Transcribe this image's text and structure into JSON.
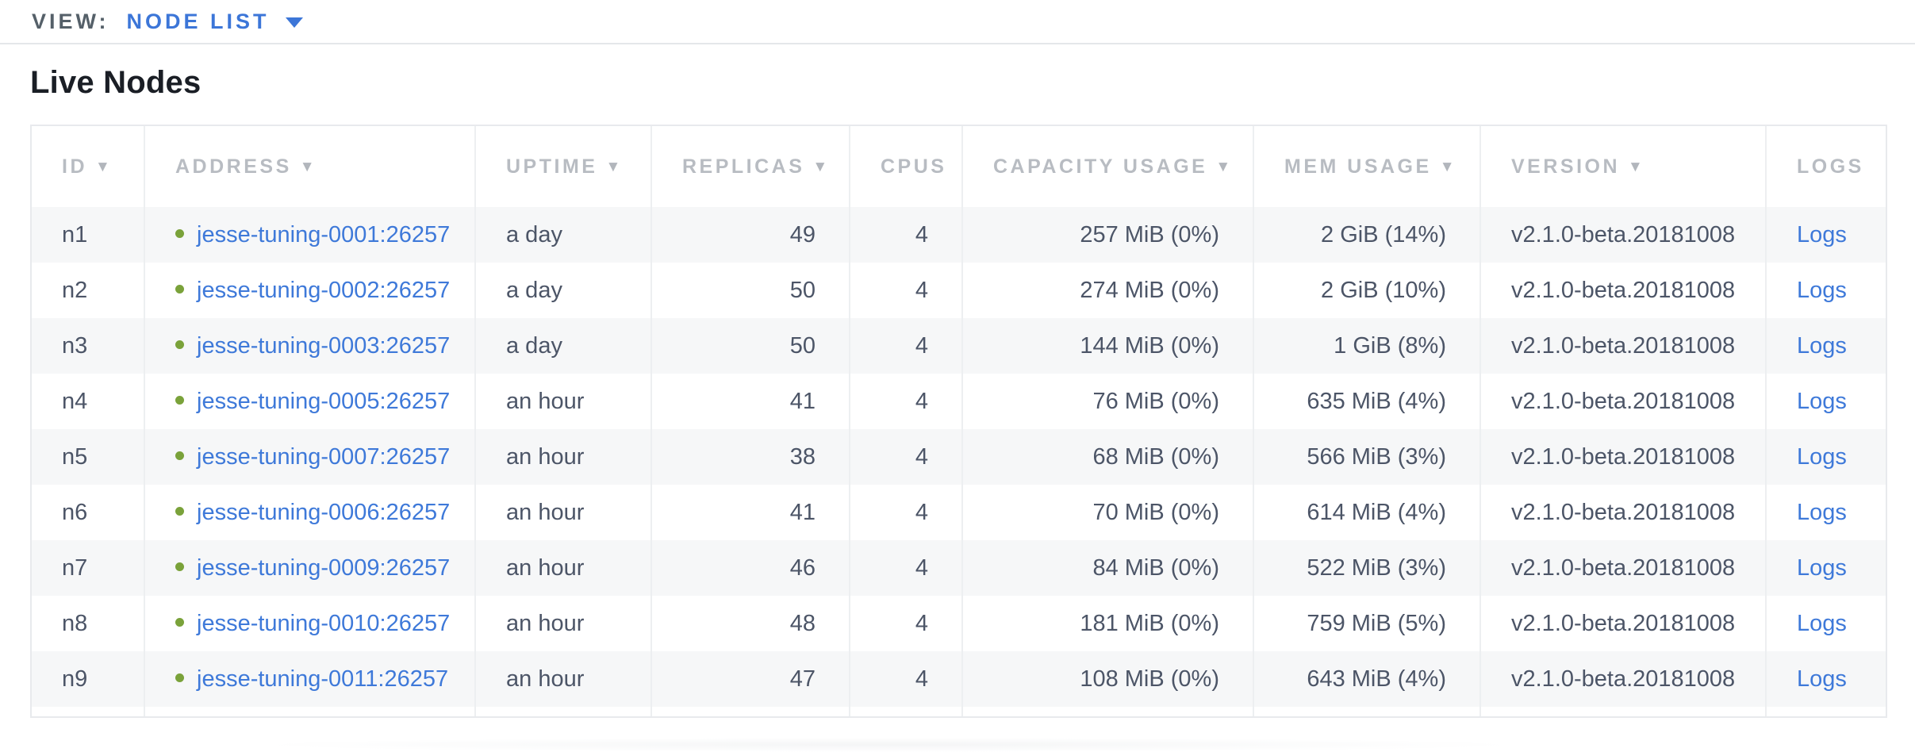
{
  "view_bar": {
    "label": "VIEW:",
    "selected": "NODE LIST"
  },
  "page": {
    "title": "Live Nodes"
  },
  "table": {
    "columns": [
      {
        "key": "id",
        "label": "ID",
        "sortable": true,
        "align": "left"
      },
      {
        "key": "address",
        "label": "ADDRESS",
        "sortable": true,
        "align": "left"
      },
      {
        "key": "uptime",
        "label": "UPTIME",
        "sortable": true,
        "align": "left"
      },
      {
        "key": "replicas",
        "label": "REPLICAS",
        "sortable": true,
        "align": "right"
      },
      {
        "key": "cpus",
        "label": "CPUS",
        "sortable": false,
        "align": "right"
      },
      {
        "key": "capacity",
        "label": "CAPACITY USAGE",
        "sortable": true,
        "align": "right"
      },
      {
        "key": "mem",
        "label": "MEM USAGE",
        "sortable": true,
        "align": "right"
      },
      {
        "key": "version",
        "label": "VERSION",
        "sortable": true,
        "align": "left"
      },
      {
        "key": "logs",
        "label": "LOGS",
        "sortable": false,
        "align": "left"
      }
    ],
    "rows": [
      {
        "id": "n1",
        "address": "jesse-tuning-0001:26257",
        "status": "healthy",
        "uptime": "a day",
        "replicas": "49",
        "cpus": "4",
        "capacity": "257 MiB (0%)",
        "mem": "2 GiB (14%)",
        "version": "v2.1.0-beta.20181008",
        "logs": "Logs"
      },
      {
        "id": "n2",
        "address": "jesse-tuning-0002:26257",
        "status": "healthy",
        "uptime": "a day",
        "replicas": "50",
        "cpus": "4",
        "capacity": "274 MiB (0%)",
        "mem": "2 GiB (10%)",
        "version": "v2.1.0-beta.20181008",
        "logs": "Logs"
      },
      {
        "id": "n3",
        "address": "jesse-tuning-0003:26257",
        "status": "healthy",
        "uptime": "a day",
        "replicas": "50",
        "cpus": "4",
        "capacity": "144 MiB (0%)",
        "mem": "1 GiB (8%)",
        "version": "v2.1.0-beta.20181008",
        "logs": "Logs"
      },
      {
        "id": "n4",
        "address": "jesse-tuning-0005:26257",
        "status": "healthy",
        "uptime": "an hour",
        "replicas": "41",
        "cpus": "4",
        "capacity": "76 MiB (0%)",
        "mem": "635 MiB (4%)",
        "version": "v2.1.0-beta.20181008",
        "logs": "Logs"
      },
      {
        "id": "n5",
        "address": "jesse-tuning-0007:26257",
        "status": "healthy",
        "uptime": "an hour",
        "replicas": "38",
        "cpus": "4",
        "capacity": "68 MiB (0%)",
        "mem": "566 MiB (3%)",
        "version": "v2.1.0-beta.20181008",
        "logs": "Logs"
      },
      {
        "id": "n6",
        "address": "jesse-tuning-0006:26257",
        "status": "healthy",
        "uptime": "an hour",
        "replicas": "41",
        "cpus": "4",
        "capacity": "70 MiB (0%)",
        "mem": "614 MiB (4%)",
        "version": "v2.1.0-beta.20181008",
        "logs": "Logs"
      },
      {
        "id": "n7",
        "address": "jesse-tuning-0009:26257",
        "status": "healthy",
        "uptime": "an hour",
        "replicas": "46",
        "cpus": "4",
        "capacity": "84 MiB (0%)",
        "mem": "522 MiB (3%)",
        "version": "v2.1.0-beta.20181008",
        "logs": "Logs"
      },
      {
        "id": "n8",
        "address": "jesse-tuning-0010:26257",
        "status": "healthy",
        "uptime": "an hour",
        "replicas": "48",
        "cpus": "4",
        "capacity": "181 MiB (0%)",
        "mem": "759 MiB (5%)",
        "version": "v2.1.0-beta.20181008",
        "logs": "Logs"
      },
      {
        "id": "n9",
        "address": "jesse-tuning-0011:26257",
        "status": "healthy",
        "uptime": "an hour",
        "replicas": "47",
        "cpus": "4",
        "capacity": "108 MiB (0%)",
        "mem": "643 MiB (4%)",
        "version": "v2.1.0-beta.20181008",
        "logs": "Logs"
      }
    ]
  },
  "colors": {
    "accent_blue": "#3c76d8",
    "link_blue": "#3e79d9",
    "healthy_dot_green": "#7aa23a",
    "header_text_gray": "#b8bcc2",
    "body_text": "#4c5567",
    "row_alt_bg": "#f6f7f8",
    "table_border": "#e8eaed"
  }
}
